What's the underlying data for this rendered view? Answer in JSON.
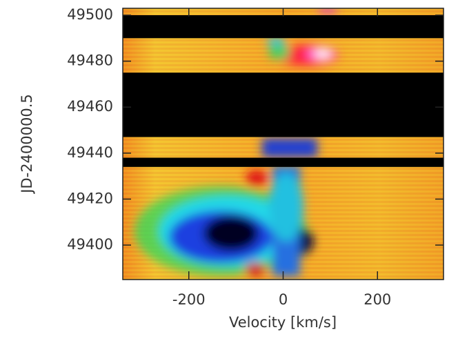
{
  "chart_data": {
    "type": "heatmap",
    "xlabel": "Velocity [km/s]",
    "ylabel": "JD-2400000.5",
    "xlim": [
      -340,
      340
    ],
    "xticks": [
      -200,
      0,
      200
    ],
    "ylim": [
      49385,
      49503
    ],
    "yticks": [
      49400,
      49420,
      49440,
      49460,
      49480,
      49500
    ],
    "data_gaps": [
      [
        49490,
        49500
      ],
      [
        49447,
        49475
      ],
      [
        49434,
        49438
      ]
    ]
  }
}
